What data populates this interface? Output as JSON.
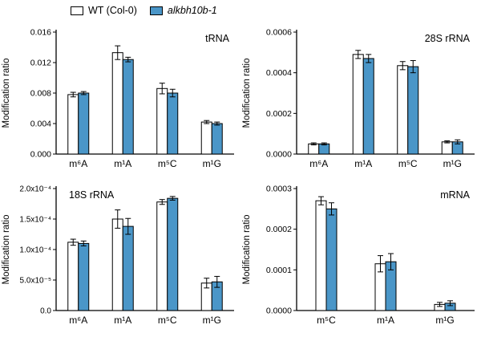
{
  "legend": {
    "wt_label": "WT (Col-0)",
    "ko_label": "alkbh10b-1",
    "wt_color": "#ffffff",
    "ko_color": "#4A96C8"
  },
  "chart_data": [
    {
      "id": "trna",
      "type": "bar",
      "title": "tRNA",
      "title_pos": "right",
      "ylabel": "Modification ratio",
      "categories": [
        "m⁶A",
        "m¹A",
        "m⁵C",
        "m¹G"
      ],
      "ylim": [
        0,
        0.016
      ],
      "yticks": [
        0,
        0.004,
        0.008,
        0.012,
        0.016
      ],
      "ytick_labels": [
        "0.000",
        "0.004",
        "0.008",
        "0.012",
        "0.016"
      ],
      "series": [
        {
          "name": "WT (Col-0)",
          "values": [
            0.0078,
            0.0133,
            0.0086,
            0.0042
          ],
          "errors": [
            0.0003,
            0.0009,
            0.0007,
            0.0002
          ]
        },
        {
          "name": "alkbh10b-1",
          "values": [
            0.008,
            0.0124,
            0.008,
            0.004
          ],
          "errors": [
            0.0002,
            0.0003,
            0.0005,
            0.0002
          ]
        }
      ]
    },
    {
      "id": "rrna28s",
      "type": "bar",
      "title": "28S rRNA",
      "title_pos": "right",
      "ylabel": "Modification ratio",
      "categories": [
        "m⁶A",
        "m¹A",
        "m⁵C",
        "m¹G"
      ],
      "ylim": [
        0,
        0.0006
      ],
      "yticks": [
        0,
        0.0002,
        0.0004,
        0.0006
      ],
      "ytick_labels": [
        "0.0000",
        "0.0002",
        "0.0004",
        "0.0006"
      ],
      "series": [
        {
          "name": "WT (Col-0)",
          "values": [
            5e-05,
            0.00049,
            0.000435,
            6e-05
          ],
          "errors": [
            5e-06,
            2e-05,
            2e-05,
            5e-06
          ]
        },
        {
          "name": "alkbh10b-1",
          "values": [
            5e-05,
            0.00047,
            0.00043,
            6e-05
          ],
          "errors": [
            5e-06,
            2e-05,
            3e-05,
            1e-05
          ]
        }
      ]
    },
    {
      "id": "rrna18s",
      "type": "bar",
      "title": "18S rRNA",
      "title_pos": "left",
      "ylabel": "Modification ratio",
      "categories": [
        "m⁶A",
        "m¹A",
        "m⁵C",
        "m¹G"
      ],
      "ylim": [
        0,
        0.0002
      ],
      "yticks": [
        0,
        5e-05,
        0.0001,
        0.00015,
        0.0002
      ],
      "ytick_labels": [
        "0.0",
        "5.0x10⁻⁵",
        "1.0x10⁻⁴",
        "1.5x10⁻⁴",
        "2.0x10⁻⁴"
      ],
      "series": [
        {
          "name": "WT (Col-0)",
          "values": [
            0.000112,
            0.00015,
            0.000178,
            4.5e-05
          ],
          "errors": [
            5e-06,
            1.5e-05,
            4e-06,
            8e-06
          ]
        },
        {
          "name": "alkbh10b-1",
          "values": [
            0.00011,
            0.000138,
            0.000184,
            4.7e-05
          ],
          "errors": [
            4e-06,
            1.3e-05,
            3e-06,
            9e-06
          ]
        }
      ]
    },
    {
      "id": "mrna",
      "type": "bar",
      "title": "mRNA",
      "title_pos": "right",
      "ylabel": "Modification ratio",
      "categories": [
        "m⁵C",
        "m¹A",
        "m¹G"
      ],
      "ylim": [
        0,
        0.0003
      ],
      "yticks": [
        0,
        0.0001,
        0.0002,
        0.0003
      ],
      "ytick_labels": [
        "0.0000",
        "0.0001",
        "0.0002",
        "0.0003"
      ],
      "series": [
        {
          "name": "WT (Col-0)",
          "values": [
            0.00027,
            0.000115,
            1.5e-05
          ],
          "errors": [
            1e-05,
            2e-05,
            5e-06
          ]
        },
        {
          "name": "alkbh10b-1",
          "values": [
            0.00025,
            0.00012,
            1.8e-05
          ],
          "errors": [
            1.5e-05,
            2e-05,
            6e-06
          ]
        }
      ]
    }
  ]
}
